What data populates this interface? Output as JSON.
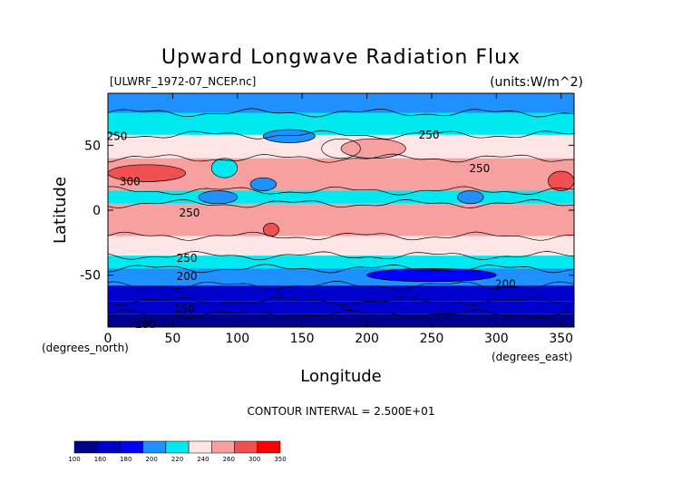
{
  "chart_data": {
    "type": "heatmap",
    "title": "Upward Longwave Radiation Flux",
    "file_label": "[ULWRF_1972-07_NCEP.nc]",
    "units_label": "(units:W/m^2)",
    "xlabel": "Longitude",
    "ylabel": "Latitude",
    "x_units_label": "(degrees_east)",
    "y_units_label": "(degrees_north)",
    "xlim": [
      0,
      360
    ],
    "ylim": [
      -90,
      90
    ],
    "x_ticks": [
      0,
      50,
      100,
      150,
      200,
      250,
      300,
      350
    ],
    "y_ticks": [
      -50,
      0,
      50
    ],
    "contour_interval_text": "CONTOUR INTERVAL = 2.500E+01",
    "contour_labels": [
      {
        "text": "250",
        "x": 7,
        "y": 57
      },
      {
        "text": "300",
        "x": 17,
        "y": 22
      },
      {
        "text": "250",
        "x": 248,
        "y": 58
      },
      {
        "text": "250",
        "x": 287,
        "y": 32
      },
      {
        "text": "250",
        "x": 63,
        "y": -2
      },
      {
        "text": "250",
        "x": 61,
        "y": -37
      },
      {
        "text": "200",
        "x": 61,
        "y": -51
      },
      {
        "text": "200",
        "x": 307,
        "y": -57
      },
      {
        "text": "150",
        "x": 59,
        "y": -76
      },
      {
        "text": "100",
        "x": 29,
        "y": -88
      }
    ],
    "colorbar": {
      "levels": [
        100,
        160,
        180,
        200,
        220,
        240,
        260,
        300,
        350
      ],
      "colors": [
        "#00008a",
        "#0000cd",
        "#0000ff",
        "#1e90ff",
        "#00e8f0",
        "#ffe6e6",
        "#f8a0a0",
        "#f05050",
        "#ff0000"
      ]
    },
    "latitude_bands": [
      {
        "lat": [
          75,
          90
        ],
        "value": 215
      },
      {
        "lat": [
          58,
          75
        ],
        "value": 235
      },
      {
        "lat": [
          40,
          58
        ],
        "value": 250
      },
      {
        "lat": [
          15,
          40
        ],
        "value": 275
      },
      {
        "lat": [
          5,
          15
        ],
        "value": 230
      },
      {
        "lat": [
          -20,
          5
        ],
        "value": 265
      },
      {
        "lat": [
          -35,
          -20
        ],
        "value": 250
      },
      {
        "lat": [
          -45,
          -35
        ],
        "value": 230
      },
      {
        "lat": [
          -58,
          -45
        ],
        "value": 210
      },
      {
        "lat": [
          -70,
          -58
        ],
        "value": 175
      },
      {
        "lat": [
          -80,
          -70
        ],
        "value": 165
      },
      {
        "lat": [
          -90,
          -80
        ],
        "value": 150
      }
    ],
    "regions": [
      {
        "lon": [
          0,
          60
        ],
        "lat": [
          22,
          35
        ],
        "value": 310
      },
      {
        "lon": [
          340,
          360
        ],
        "lat": [
          15,
          30
        ],
        "value": 310
      },
      {
        "lon": [
          80,
          100
        ],
        "lat": [
          25,
          40
        ],
        "value": 230
      },
      {
        "lon": [
          165,
          195
        ],
        "lat": [
          40,
          55
        ],
        "value": 255
      },
      {
        "lon": [
          180,
          230
        ],
        "lat": [
          40,
          55
        ],
        "value": 270
      },
      {
        "lon": [
          70,
          100
        ],
        "lat": [
          5,
          15
        ],
        "value": 215
      },
      {
        "lon": [
          110,
          130
        ],
        "lat": [
          15,
          25
        ],
        "value": 215
      },
      {
        "lon": [
          270,
          290
        ],
        "lat": [
          5,
          15
        ],
        "value": 215
      },
      {
        "lon": [
          120,
          132
        ],
        "lat": [
          -20,
          -10
        ],
        "value": 310
      },
      {
        "lon": [
          200,
          300
        ],
        "lat": [
          -55,
          -45
        ],
        "value": 195
      },
      {
        "lon": [
          120,
          160
        ],
        "lat": [
          52,
          62
        ],
        "value": 205
      }
    ],
    "legend": "bottom-left colorbar"
  }
}
